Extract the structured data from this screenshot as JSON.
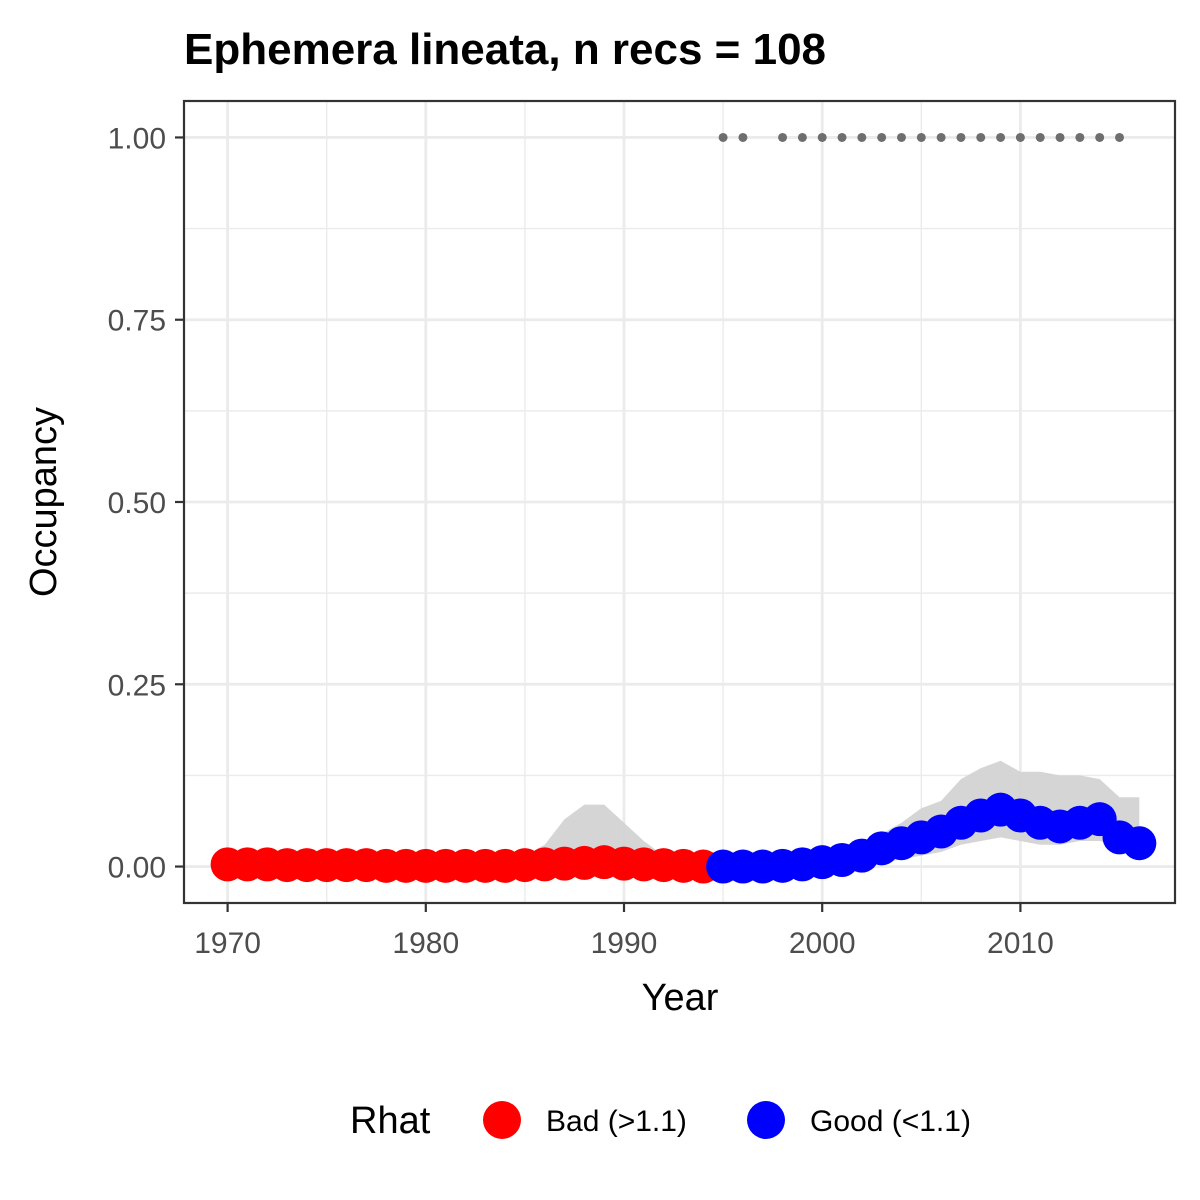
{
  "chart_data": {
    "type": "scatter",
    "title": "Ephemera lineata, n recs = 108",
    "xlabel": "Year",
    "ylabel": "Occupancy",
    "xlim": [
      1967.8,
      2017.8
    ],
    "ylim": [
      -0.05,
      1.05
    ],
    "x_ticks": [
      1970,
      1980,
      1990,
      2000,
      2010
    ],
    "x_tick_labels": [
      "1970",
      "1980",
      "1990",
      "2000",
      "2010"
    ],
    "y_ticks": [
      0,
      0.25,
      0.5,
      0.75,
      1.0
    ],
    "y_tick_labels": [
      "0.00",
      "0.25",
      "0.50",
      "0.75",
      "1.00"
    ],
    "grid": true,
    "legend": {
      "title": "Rhat",
      "position": "bottom",
      "entries": [
        {
          "label": "Bad (>1.1)",
          "color": "#ff0000"
        },
        {
          "label": "Good (<1.1)",
          "color": "#0000ff"
        }
      ]
    },
    "colors": {
      "bad": "#ff0000",
      "good": "#0000ff",
      "ribbon": "#d3d3d3",
      "records": "#6e6e6e"
    },
    "series": [
      {
        "rhat": "Bad (>1.1)",
        "x": [
          1970,
          1971,
          1972,
          1973,
          1974,
          1975,
          1976,
          1977,
          1978,
          1979,
          1980,
          1981,
          1982,
          1983,
          1984,
          1985,
          1986,
          1987,
          1988,
          1989,
          1990,
          1991,
          1992,
          1993,
          1994
        ],
        "y": [
          0.003,
          0.003,
          0.003,
          0.002,
          0.002,
          0.002,
          0.002,
          0.002,
          0.001,
          0.001,
          0.001,
          0.001,
          0.001,
          0.001,
          0.001,
          0.002,
          0.003,
          0.004,
          0.005,
          0.006,
          0.004,
          0.003,
          0.002,
          0.001,
          0.0
        ]
      },
      {
        "rhat": "Good (<1.1)",
        "x": [
          1995,
          1996,
          1997,
          1998,
          1999,
          2000,
          2001,
          2002,
          2003,
          2004,
          2005,
          2006,
          2007,
          2008,
          2009,
          2010,
          2011,
          2012,
          2013,
          2014,
          2015,
          2016
        ],
        "y": [
          0.0,
          0.0,
          0.0,
          0.001,
          0.003,
          0.006,
          0.009,
          0.015,
          0.025,
          0.032,
          0.04,
          0.048,
          0.06,
          0.07,
          0.078,
          0.07,
          0.06,
          0.055,
          0.06,
          0.065,
          0.04,
          0.032
        ]
      }
    ],
    "credible_interval": {
      "x": [
        1970,
        1971,
        1972,
        1973,
        1974,
        1975,
        1976,
        1977,
        1978,
        1979,
        1980,
        1981,
        1982,
        1983,
        1984,
        1985,
        1986,
        1987,
        1988,
        1989,
        1990,
        1991,
        1992,
        1993,
        1994,
        1995,
        1996,
        1997,
        1998,
        1999,
        2000,
        2001,
        2002,
        2003,
        2004,
        2005,
        2006,
        2007,
        2008,
        2009,
        2010,
        2011,
        2012,
        2013,
        2014,
        2015,
        2016
      ],
      "lower": [
        0,
        0,
        0,
        0,
        0,
        0,
        0,
        0,
        0,
        0,
        0,
        0,
        0,
        0,
        0,
        0,
        0,
        0,
        0,
        0,
        0,
        0,
        0,
        0,
        0,
        0,
        0,
        0,
        0,
        0,
        0,
        0,
        0,
        0.005,
        0.01,
        0.015,
        0.02,
        0.03,
        0.035,
        0.04,
        0.035,
        0.03,
        0.03,
        0.035,
        0.035,
        0.028,
        0.022
      ],
      "upper": [
        0.01,
        0.01,
        0.01,
        0.01,
        0.01,
        0.01,
        0.01,
        0.01,
        0.01,
        0.01,
        0.01,
        0.01,
        0.01,
        0.01,
        0.01,
        0.015,
        0.03,
        0.065,
        0.085,
        0.085,
        0.06,
        0.035,
        0.015,
        0.01,
        0.01,
        0.01,
        0.01,
        0.01,
        0.01,
        0.01,
        0.015,
        0.02,
        0.03,
        0.045,
        0.06,
        0.08,
        0.09,
        0.12,
        0.135,
        0.145,
        0.13,
        0.13,
        0.125,
        0.125,
        0.12,
        0.095,
        0.095
      ]
    },
    "record_years": {
      "y": 1.0,
      "x": [
        1995,
        1996,
        1998,
        1999,
        2000,
        2001,
        2002,
        2003,
        2004,
        2005,
        2006,
        2007,
        2008,
        2009,
        2010,
        2011,
        2012,
        2013,
        2014,
        2015
      ]
    }
  }
}
